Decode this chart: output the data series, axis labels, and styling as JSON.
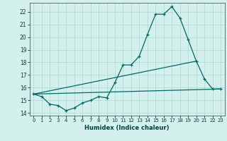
{
  "xlabel": "Humidex (Indice chaleur)",
  "background_color": "#d4f0ec",
  "grid_color": "#a8d8d0",
  "line_color": "#006868",
  "xlim": [
    -0.5,
    23.5
  ],
  "ylim": [
    13.8,
    22.7
  ],
  "yticks": [
    14,
    15,
    16,
    17,
    18,
    19,
    20,
    21,
    22
  ],
  "xticks": [
    0,
    1,
    2,
    3,
    4,
    5,
    6,
    7,
    8,
    9,
    10,
    11,
    12,
    13,
    14,
    15,
    16,
    17,
    18,
    19,
    20,
    21,
    22,
    23
  ],
  "main_series": {
    "x": [
      0,
      1,
      2,
      3,
      4,
      5,
      6,
      7,
      8,
      9,
      10,
      11,
      12,
      13,
      14,
      15,
      16,
      17,
      18,
      19,
      20,
      21,
      22,
      23
    ],
    "y": [
      15.5,
      15.3,
      14.7,
      14.6,
      14.2,
      14.4,
      14.8,
      15.0,
      15.3,
      15.2,
      16.4,
      17.8,
      17.8,
      18.5,
      20.2,
      21.8,
      21.8,
      22.4,
      21.5,
      19.8,
      18.1,
      16.7,
      15.9,
      15.9
    ]
  },
  "trend1": {
    "x": [
      0,
      23
    ],
    "y": [
      15.5,
      15.9
    ]
  },
  "trend2": {
    "x": [
      0,
      20
    ],
    "y": [
      15.5,
      18.1
    ]
  }
}
